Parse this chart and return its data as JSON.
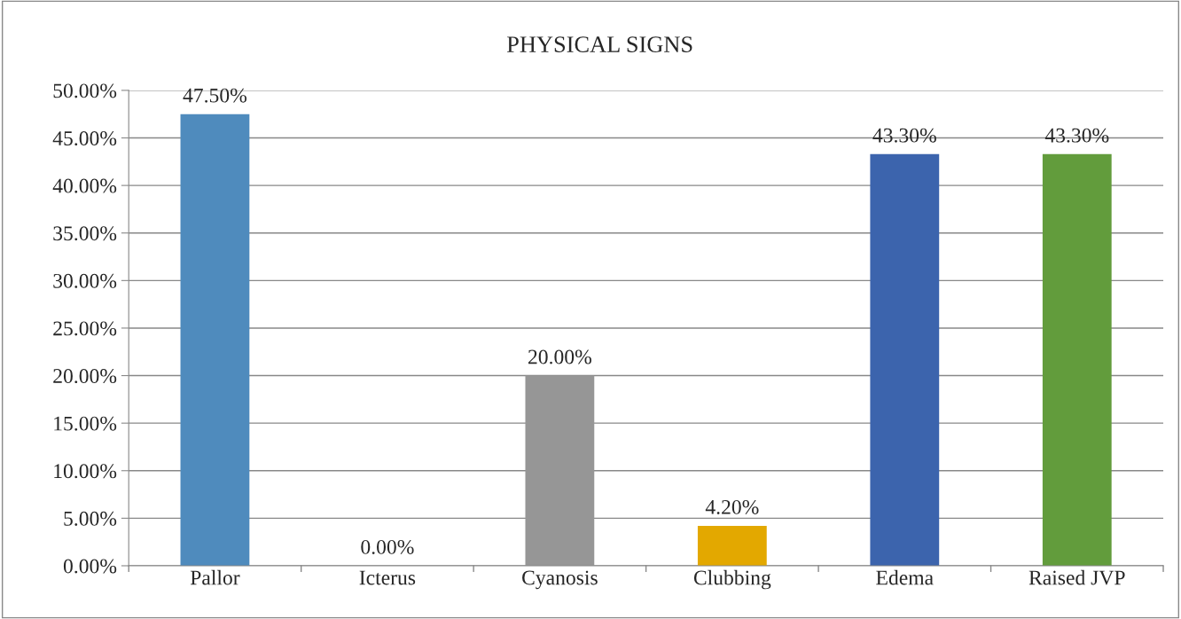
{
  "chart_data": {
    "type": "bar",
    "title": "PHYSICAL SIGNS",
    "categories": [
      "Pallor",
      "Icterus",
      "Cyanosis",
      "Clubbing",
      "Edema",
      "Raised JVP"
    ],
    "values": [
      47.5,
      0,
      20,
      4.2,
      43.3,
      43.3
    ],
    "colors": [
      "#4f8bbd",
      "#4f81bd",
      "#969696",
      "#e3a800",
      "#3c64ad",
      "#629c3c"
    ],
    "value_labels": [
      "47.50%",
      "0.00%",
      "20.00%",
      "4.20%",
      "43.30%",
      "43.30%"
    ],
    "ylim": [
      0,
      50
    ],
    "yticks": [
      {
        "value": 0,
        "label": "0.00%"
      },
      {
        "value": 5,
        "label": "5.00%"
      },
      {
        "value": 10,
        "label": "10.00%"
      },
      {
        "value": 15,
        "label": "15.00%"
      },
      {
        "value": 20,
        "label": "20.00%"
      },
      {
        "value": 25,
        "label": "25.00%"
      },
      {
        "value": 30,
        "label": "30.00%"
      },
      {
        "value": 35,
        "label": "35.00%"
      },
      {
        "value": 40,
        "label": "40.00%"
      },
      {
        "value": 45,
        "label": "45.00%"
      },
      {
        "value": 50,
        "label": "50.00%"
      }
    ],
    "grid": "y",
    "legend": false
  }
}
